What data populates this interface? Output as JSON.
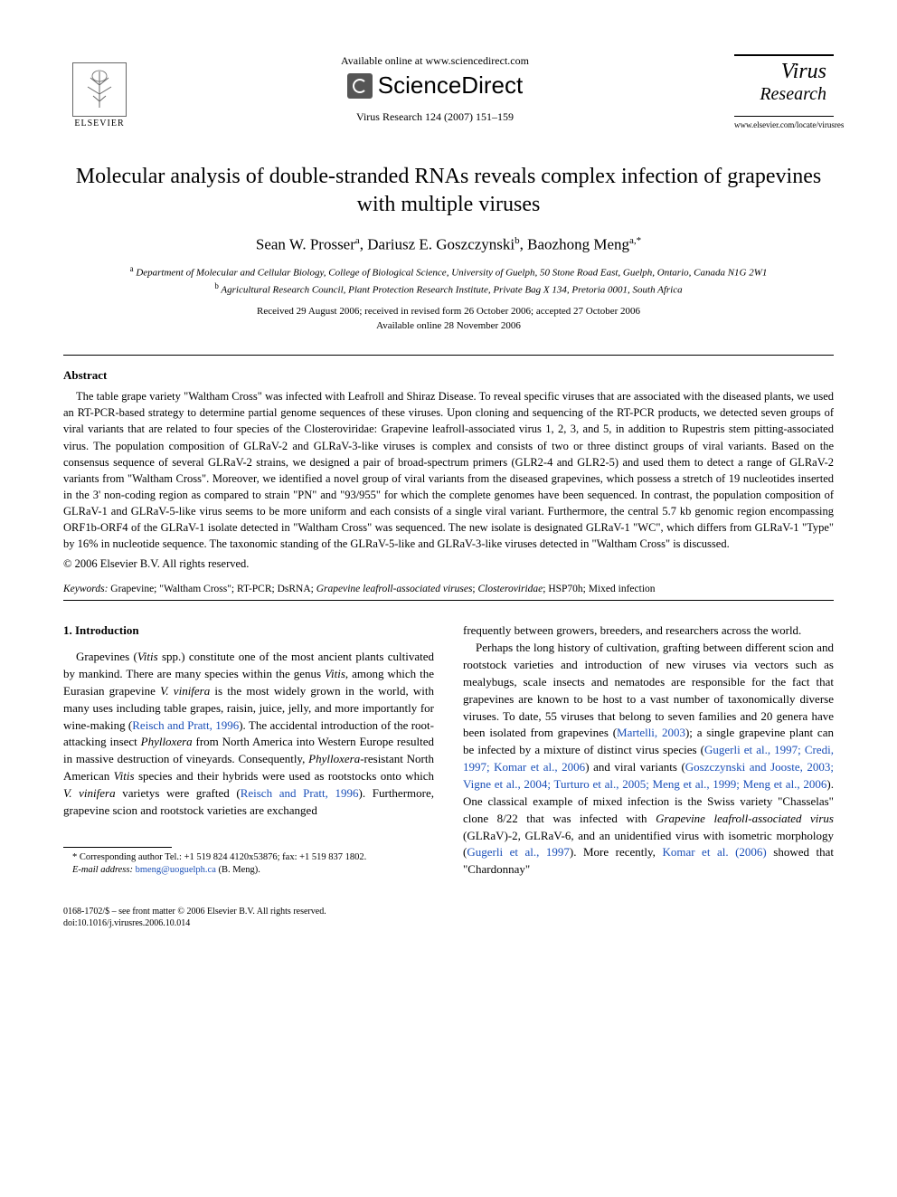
{
  "header": {
    "available_online": "Available online at www.sciencedirect.com",
    "sciencedirect": "ScienceDirect",
    "journal_ref": "Virus Research 124 (2007) 151–159",
    "elsevier": "ELSEVIER",
    "journal_title_1": "Virus",
    "journal_title_2": "Research",
    "journal_url": "www.elsevier.com/locate/virusres"
  },
  "article": {
    "title": "Molecular analysis of double-stranded RNAs reveals complex infection of grapevines with multiple viruses",
    "authors_html": "Sean W. Prosser<sup>a</sup>, Dariusz E. Goszczynski<sup>b</sup>, Baozhong Meng<sup>a,*</sup>",
    "affil_a": "Department of Molecular and Cellular Biology, College of Biological Science, University of Guelph, 50 Stone Road East, Guelph, Ontario, Canada N1G 2W1",
    "affil_b": "Agricultural Research Council, Plant Protection Research Institute, Private Bag X 134, Pretoria 0001, South Africa",
    "dates_line1": "Received 29 August 2006; received in revised form 26 October 2006; accepted 27 October 2006",
    "dates_line2": "Available online 28 November 2006"
  },
  "abstract": {
    "heading": "Abstract",
    "text": "The table grape variety \"Waltham Cross\" was infected with Leafroll and Shiraz Disease. To reveal specific viruses that are associated with the diseased plants, we used an RT-PCR-based strategy to determine partial genome sequences of these viruses. Upon cloning and sequencing of the RT-PCR products, we detected seven groups of viral variants that are related to four species of the Closteroviridae: Grapevine leafroll-associated virus 1, 2, 3, and 5, in addition to Rupestris stem pitting-associated virus. The population composition of GLRaV-2 and GLRaV-3-like viruses is complex and consists of two or three distinct groups of viral variants. Based on the consensus sequence of several GLRaV-2 strains, we designed a pair of broad-spectrum primers (GLR2-4 and GLR2-5) and used them to detect a range of GLRaV-2 variants from \"Waltham Cross\". Moreover, we identified a novel group of viral variants from the diseased grapevines, which possess a stretch of 19 nucleotides inserted in the 3' non-coding region as compared to strain \"PN\" and \"93/955\" for which the complete genomes have been sequenced. In contrast, the population composition of GLRaV-1 and GLRaV-5-like virus seems to be more uniform and each consists of a single viral variant. Furthermore, the central 5.7 kb genomic region encompassing ORF1b-ORF4 of the GLRaV-1 isolate detected in \"Waltham Cross\" was sequenced. The new isolate is designated GLRaV-1 \"WC\", which differs from GLRaV-1 \"Type\" by 16% in nucleotide sequence. The taxonomic standing of the GLRaV-5-like and GLRaV-3-like viruses detected in \"Waltham Cross\" is discussed.",
    "copyright": "© 2006 Elsevier B.V. All rights reserved."
  },
  "keywords": {
    "label": "Keywords:",
    "text": "Grapevine; \"Waltham Cross\"; RT-PCR; DsRNA; Grapevine leafroll-associated viruses; Closteroviridae; HSP70h; Mixed infection"
  },
  "body": {
    "section_heading": "1.  Introduction",
    "col1_p1_html": "Grapevines (<em>Vitis</em> spp.) constitute one of the most ancient plants cultivated by mankind. There are many species within the genus <em>Vitis</em>, among which the Eurasian grapevine <em>V. vinifera</em> is the most widely grown in the world, with many uses including table grapes, raisin, juice, jelly, and more importantly for wine-making (<span class=\"cite\">Reisch and Pratt, 1996</span>). The accidental introduction of the root-attacking insect <em>Phylloxera</em> from North America into Western Europe resulted in massive destruction of vineyards. Consequently, <em>Phylloxera</em>-resistant North American <em>Vitis</em> species and their hybrids were used as rootstocks onto which <em>V. vinifera</em> varietys were grafted (<span class=\"cite\">Reisch and Pratt, 1996</span>). Furthermore, grapevine scion and rootstock varieties are exchanged",
    "col2_p1": "frequently between growers, breeders, and researchers across the world.",
    "col2_p2_html": "Perhaps the long history of cultivation, grafting between different scion and rootstock varieties and introduction of new viruses via vectors such as mealybugs, scale insects and nematodes are responsible for the fact that grapevines are known to be host to a vast number of taxonomically diverse viruses. To date, 55 viruses that belong to seven families and 20 genera have been isolated from grapevines (<span class=\"cite\">Martelli, 2003</span>); a single grapevine plant can be infected by a mixture of distinct virus species (<span class=\"cite\">Gugerli et al., 1997; Credi, 1997; Komar et al., 2006</span>) and viral variants (<span class=\"cite\">Goszczynski and Jooste, 2003; Vigne et al., 2004; Turturo et al., 2005; Meng et al., 1999; Meng et al., 2006</span>). One classical example of mixed infection is the Swiss variety \"Chasselas\" clone 8/22 that was infected with <em>Grapevine leafroll-associated virus</em> (GLRaV)-2, GLRaV-6, and an unidentified virus with isometric morphology (<span class=\"cite\">Gugerli et al., 1997</span>). More recently, <span class=\"cite\">Komar et al. (2006)</span> showed that \"Chardonnay\""
  },
  "footnote": {
    "corresponding": "* Corresponding author Tel.: +1 519 824 4120x53876; fax: +1 519 837 1802.",
    "email_label": "E-mail address:",
    "email": "bmeng@uoguelph.ca",
    "email_who": "(B. Meng)."
  },
  "footer": {
    "line1": "0168-1702/$ – see front matter © 2006 Elsevier B.V. All rights reserved.",
    "line2": "doi:10.1016/j.virusres.2006.10.014"
  }
}
